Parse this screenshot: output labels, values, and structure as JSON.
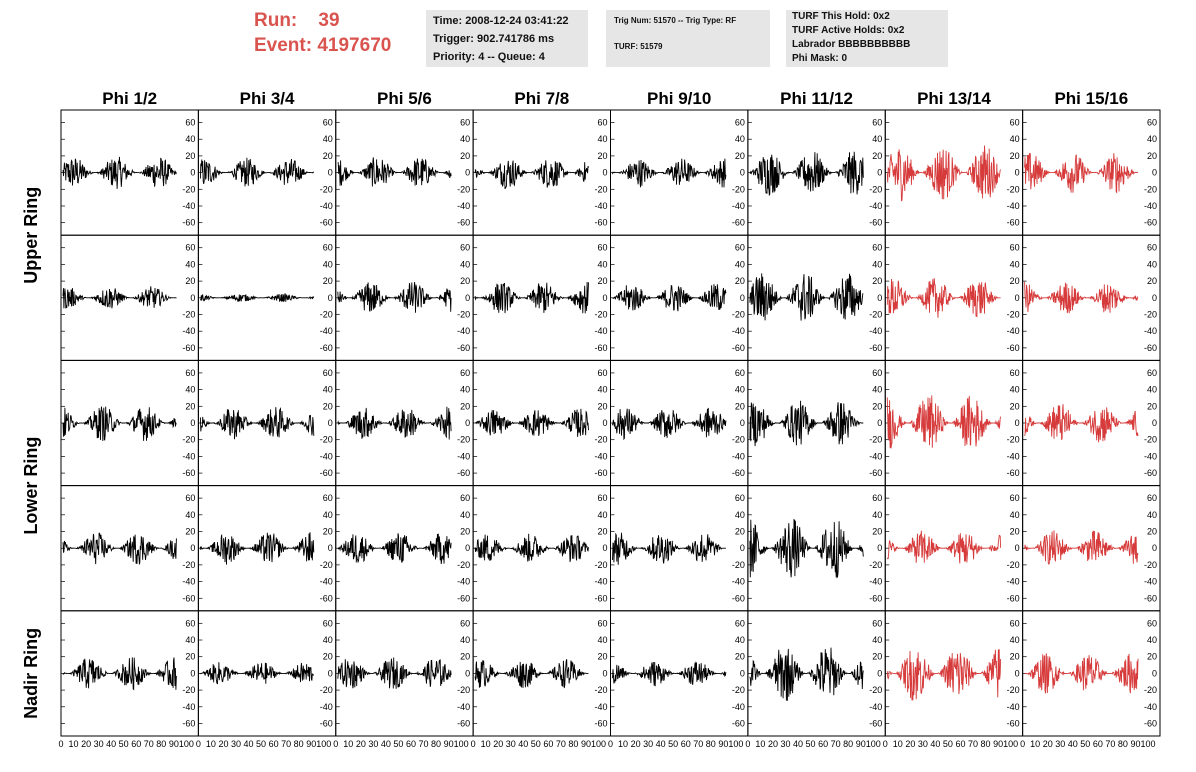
{
  "header": {
    "run_label": "Run:",
    "run_value": "39",
    "event_label": "Event:",
    "event_value": "4197670",
    "info1": [
      "Time: 2008-12-24 03:41:22",
      "Trigger: 902.741786 ms",
      "Priority: 4 -- Queue: 4"
    ],
    "info2": [
      "Trig Num: 51570 -- Trig Type: RF",
      "TURF: 51579"
    ],
    "info3": [
      "TURF This Hold: 0x2",
      "TURF Active Holds: 0x2",
      "Labrador BBBBBBBBBB",
      "Phi Mask: 0"
    ]
  },
  "chart_data": {
    "type": "line",
    "columns": [
      "Phi 1/2",
      "Phi 3/4",
      "Phi 5/6",
      "Phi 7/8",
      "Phi 9/10",
      "Phi 11/12",
      "Phi 13/14",
      "Phi 15/16"
    ],
    "rows": [
      "Upper Ring",
      "Lower Ring",
      "Nadir Ring"
    ],
    "row_label_spans": [
      [
        0,
        1
      ],
      [
        2,
        3
      ],
      [
        4,
        4
      ]
    ],
    "ylim": [
      -75,
      75
    ],
    "y_ticks": [
      -60,
      -40,
      -20,
      0,
      20,
      40,
      60
    ],
    "x_ticks": [
      0,
      10,
      20,
      30,
      40,
      50,
      60,
      70,
      80,
      90,
      100
    ],
    "xlim": [
      0,
      100
    ],
    "colors": {
      "normal": "#000000",
      "triggered": "#d63a3a"
    },
    "triggered_columns": [
      6,
      7
    ],
    "waveform_amplitude": [
      [
        20,
        18,
        20,
        20,
        18,
        28,
        35,
        25
      ],
      [
        14,
        5,
        20,
        20,
        18,
        32,
        25,
        20
      ],
      [
        22,
        20,
        20,
        18,
        20,
        28,
        35,
        25
      ],
      [
        20,
        20,
        20,
        18,
        20,
        38,
        22,
        22
      ],
      [
        20,
        14,
        20,
        18,
        16,
        35,
        35,
        25
      ]
    ]
  }
}
